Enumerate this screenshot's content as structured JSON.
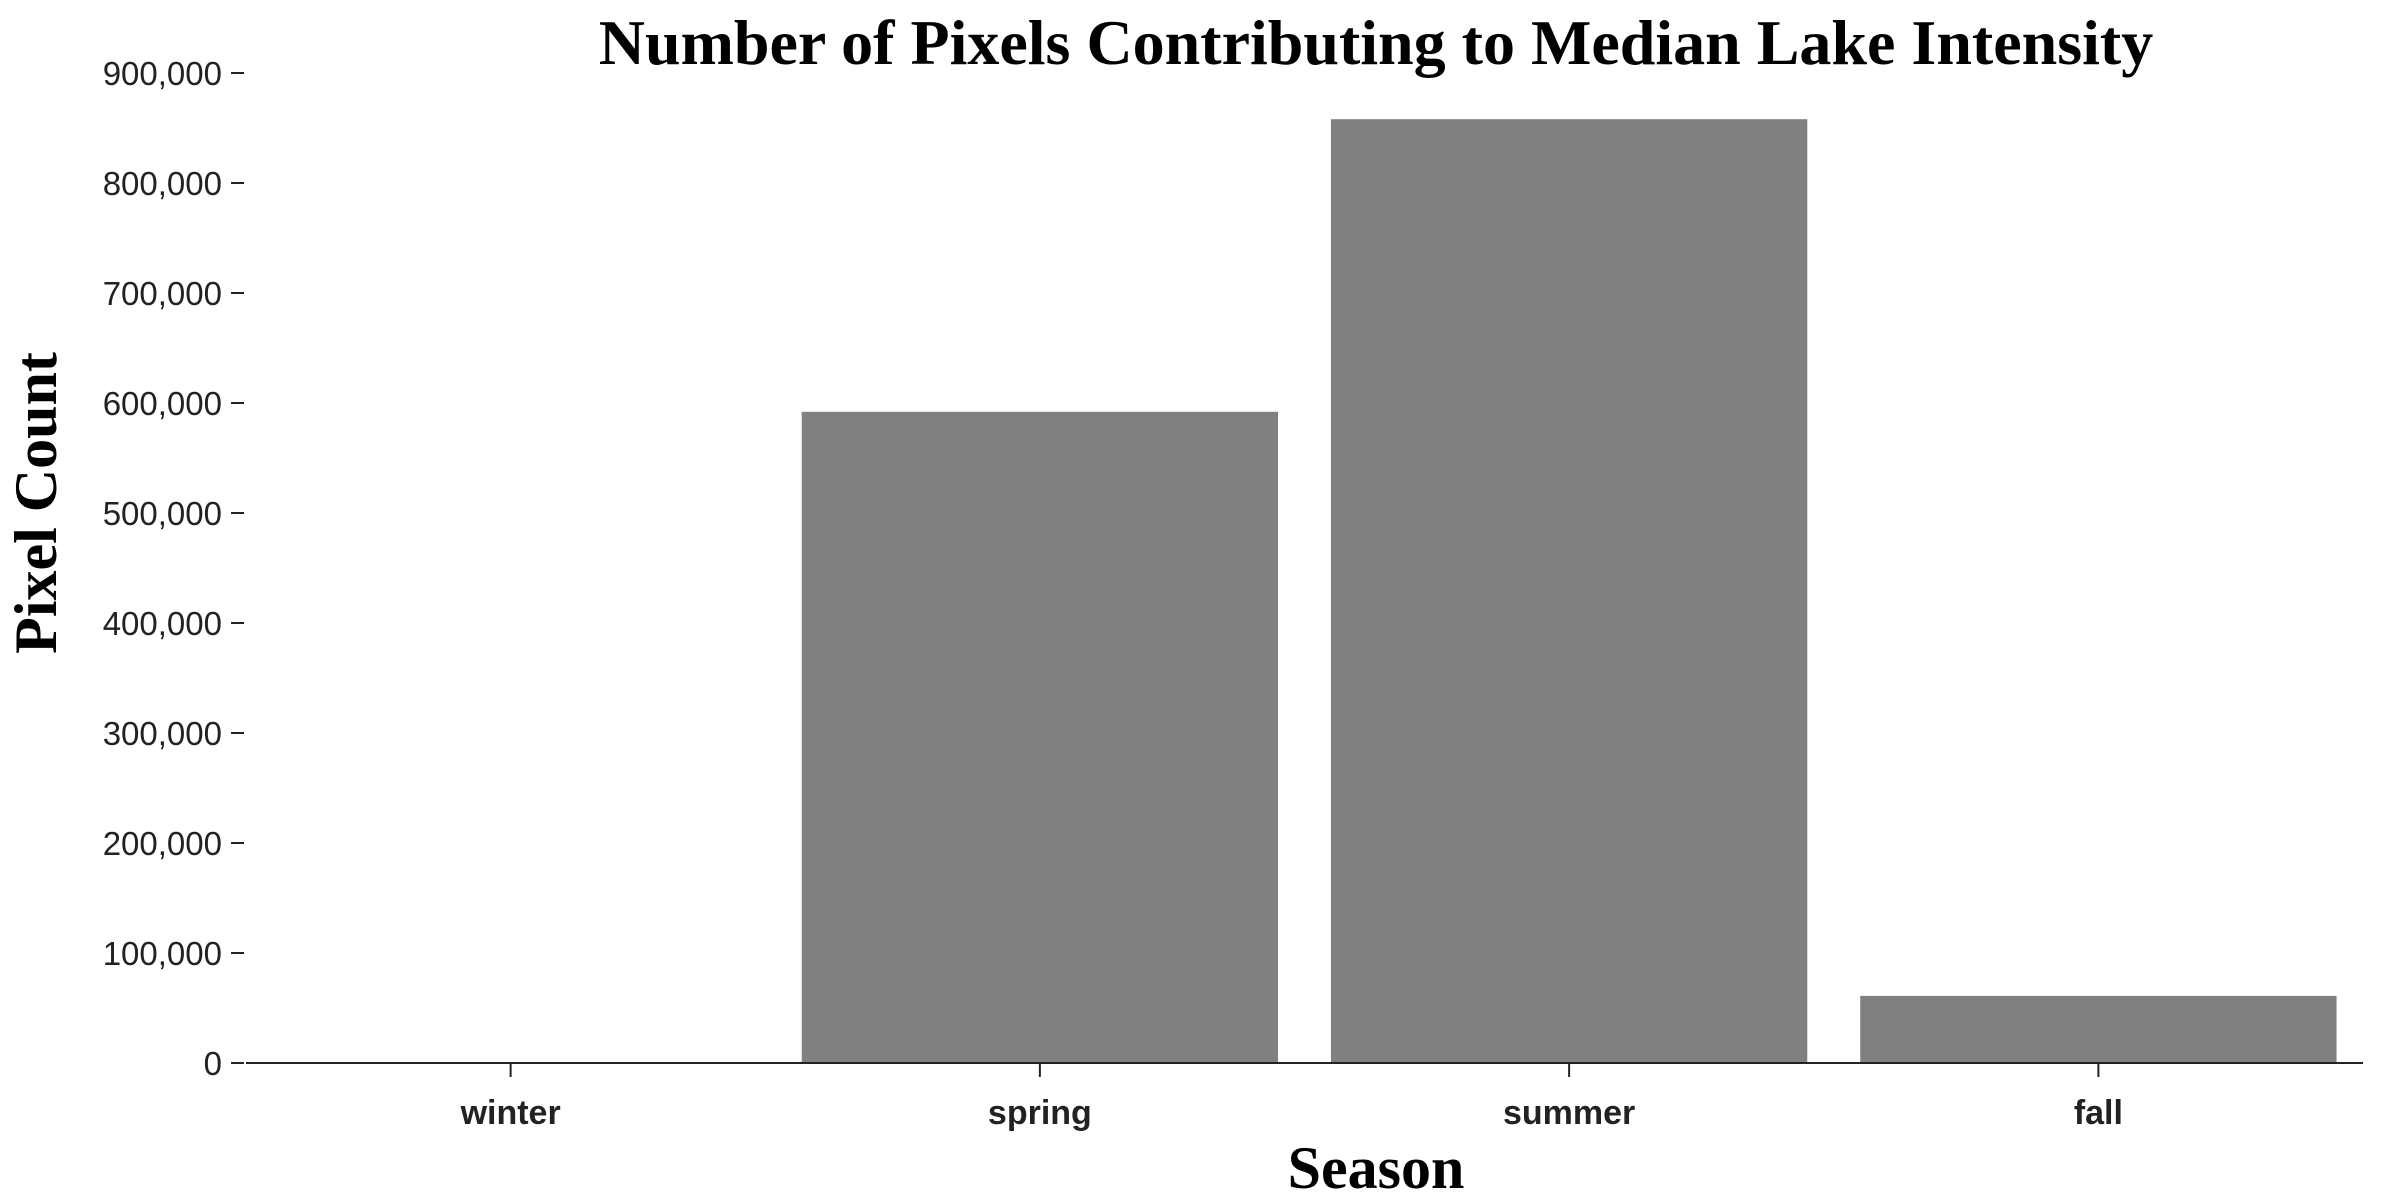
{
  "chart_data": {
    "type": "bar",
    "title": "Number of Pixels Contributing to Median Lake Intensity",
    "xlabel": "Season",
    "ylabel": "Pixel Count",
    "categories": [
      "winter",
      "spring",
      "summer",
      "fall"
    ],
    "values": [
      0,
      592000,
      858000,
      61000
    ],
    "ylim": [
      0,
      900000
    ],
    "yticks": [
      0,
      100000,
      200000,
      300000,
      400000,
      500000,
      600000,
      700000,
      800000,
      900000
    ],
    "ytick_labels": [
      "0",
      "100,000",
      "200,000",
      "300,000",
      "400,000",
      "500,000",
      "600,000",
      "700,000",
      "800,000",
      "900,000"
    ],
    "grid": false,
    "bar_color": "#808080"
  }
}
